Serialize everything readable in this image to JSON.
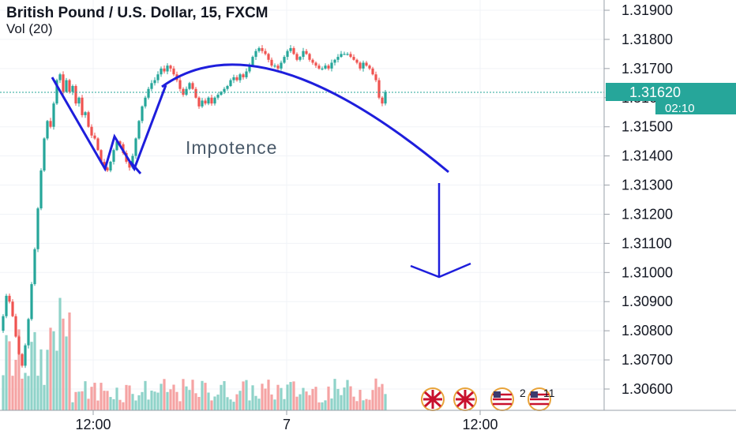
{
  "header": {
    "title": "British Pound / U.S. Dollar, 15, FXCM",
    "indicator": "Vol (20)"
  },
  "annotations": {
    "text": "Impotence",
    "event_counts": [
      "2",
      "11"
    ]
  },
  "price_badge": {
    "price": "1.31620",
    "countdown": "02:10"
  },
  "colors": {
    "up": "#26a69a",
    "down": "#ef5350",
    "vol_up": "#8fd3c9",
    "vol_down": "#f5a3a3",
    "drawing": "#1e1edc",
    "badge": "#26a69a"
  },
  "chart_data": {
    "type": "candlestick",
    "title": "British Pound / U.S. Dollar, 15, FXCM",
    "y_ticks": [
      "1.31900",
      "1.31800",
      "1.31700",
      "1.31600",
      "1.31500",
      "1.31400",
      "1.31300",
      "1.31200",
      "1.31100",
      "1.31000",
      "1.30900",
      "1.30800",
      "1.30700",
      "1.30600"
    ],
    "x_ticks": [
      "12:00",
      "7",
      "12:00"
    ],
    "ylim": [
      1.3054,
      1.3196
    ],
    "last_price": 1.3162,
    "price_path": [
      [
        0,
        1.308
      ],
      [
        4,
        1.3085
      ],
      [
        8,
        1.3092
      ],
      [
        12,
        1.309
      ],
      [
        16,
        1.3085
      ],
      [
        20,
        1.3078
      ],
      [
        24,
        1.3072
      ],
      [
        28,
        1.3068
      ],
      [
        32,
        1.3075
      ],
      [
        36,
        1.3084
      ],
      [
        40,
        1.3096
      ],
      [
        44,
        1.3108
      ],
      [
        48,
        1.3122
      ],
      [
        52,
        1.3135
      ],
      [
        56,
        1.3146
      ],
      [
        60,
        1.3152
      ],
      [
        64,
        1.315
      ],
      [
        68,
        1.3158
      ],
      [
        72,
        1.3166
      ],
      [
        76,
        1.3168
      ],
      [
        80,
        1.3162
      ],
      [
        84,
        1.3166
      ],
      [
        88,
        1.3162
      ],
      [
        92,
        1.3164
      ],
      [
        96,
        1.3158
      ],
      [
        100,
        1.316
      ],
      [
        104,
        1.3154
      ],
      [
        108,
        1.3155
      ],
      [
        112,
        1.315
      ],
      [
        116,
        1.3147
      ],
      [
        120,
        1.3146
      ],
      [
        124,
        1.3142
      ],
      [
        128,
        1.3138
      ],
      [
        132,
        1.3136
      ],
      [
        136,
        1.3135
      ],
      [
        140,
        1.3138
      ],
      [
        144,
        1.3142
      ],
      [
        148,
        1.3145
      ],
      [
        152,
        1.3144
      ],
      [
        156,
        1.3141
      ],
      [
        160,
        1.3138
      ],
      [
        164,
        1.3136
      ],
      [
        168,
        1.314
      ],
      [
        172,
        1.3146
      ],
      [
        176,
        1.3152
      ],
      [
        180,
        1.3157
      ],
      [
        184,
        1.316
      ],
      [
        188,
        1.3163
      ],
      [
        192,
        1.3165
      ],
      [
        196,
        1.3166
      ],
      [
        200,
        1.3168
      ],
      [
        204,
        1.317
      ],
      [
        208,
        1.3169
      ],
      [
        212,
        1.3171
      ],
      [
        216,
        1.317
      ],
      [
        220,
        1.3168
      ],
      [
        224,
        1.3166
      ],
      [
        228,
        1.3163
      ],
      [
        232,
        1.3161
      ],
      [
        236,
        1.3163
      ],
      [
        240,
        1.3165
      ],
      [
        244,
        1.3163
      ],
      [
        248,
        1.316
      ],
      [
        252,
        1.3157
      ],
      [
        256,
        1.3159
      ],
      [
        260,
        1.3158
      ],
      [
        264,
        1.316
      ],
      [
        268,
        1.3158
      ],
      [
        272,
        1.316
      ],
      [
        276,
        1.3161
      ],
      [
        280,
        1.3162
      ],
      [
        284,
        1.3163
      ],
      [
        288,
        1.3164
      ],
      [
        292,
        1.3166
      ],
      [
        296,
        1.3167
      ],
      [
        300,
        1.3166
      ],
      [
        304,
        1.3168
      ],
      [
        308,
        1.3167
      ],
      [
        312,
        1.3169
      ],
      [
        316,
        1.3171
      ],
      [
        320,
        1.3174
      ],
      [
        324,
        1.3176
      ],
      [
        328,
        1.3177
      ],
      [
        332,
        1.3176
      ],
      [
        336,
        1.3175
      ],
      [
        340,
        1.3173
      ],
      [
        344,
        1.3171
      ],
      [
        348,
        1.3171
      ],
      [
        352,
        1.317
      ],
      [
        356,
        1.3172
      ],
      [
        360,
        1.3174
      ],
      [
        364,
        1.3176
      ],
      [
        368,
        1.3177
      ],
      [
        372,
        1.3175
      ],
      [
        376,
        1.3173
      ],
      [
        380,
        1.3174
      ],
      [
        384,
        1.3176
      ],
      [
        388,
        1.3175
      ],
      [
        392,
        1.3173
      ],
      [
        396,
        1.3172
      ],
      [
        400,
        1.3171
      ],
      [
        404,
        1.317
      ],
      [
        408,
        1.317
      ],
      [
        412,
        1.3171
      ],
      [
        416,
        1.317
      ],
      [
        420,
        1.3172
      ],
      [
        424,
        1.3173
      ],
      [
        428,
        1.3174
      ],
      [
        432,
        1.3175
      ],
      [
        436,
        1.3175
      ],
      [
        440,
        1.3175
      ],
      [
        444,
        1.3174
      ],
      [
        448,
        1.3173
      ],
      [
        452,
        1.3172
      ],
      [
        456,
        1.317
      ],
      [
        460,
        1.3172
      ],
      [
        464,
        1.3171
      ],
      [
        468,
        1.317
      ],
      [
        472,
        1.3168
      ],
      [
        476,
        1.3166
      ],
      [
        480,
        1.316
      ],
      [
        484,
        1.3158
      ],
      [
        488,
        1.3162
      ]
    ]
  }
}
